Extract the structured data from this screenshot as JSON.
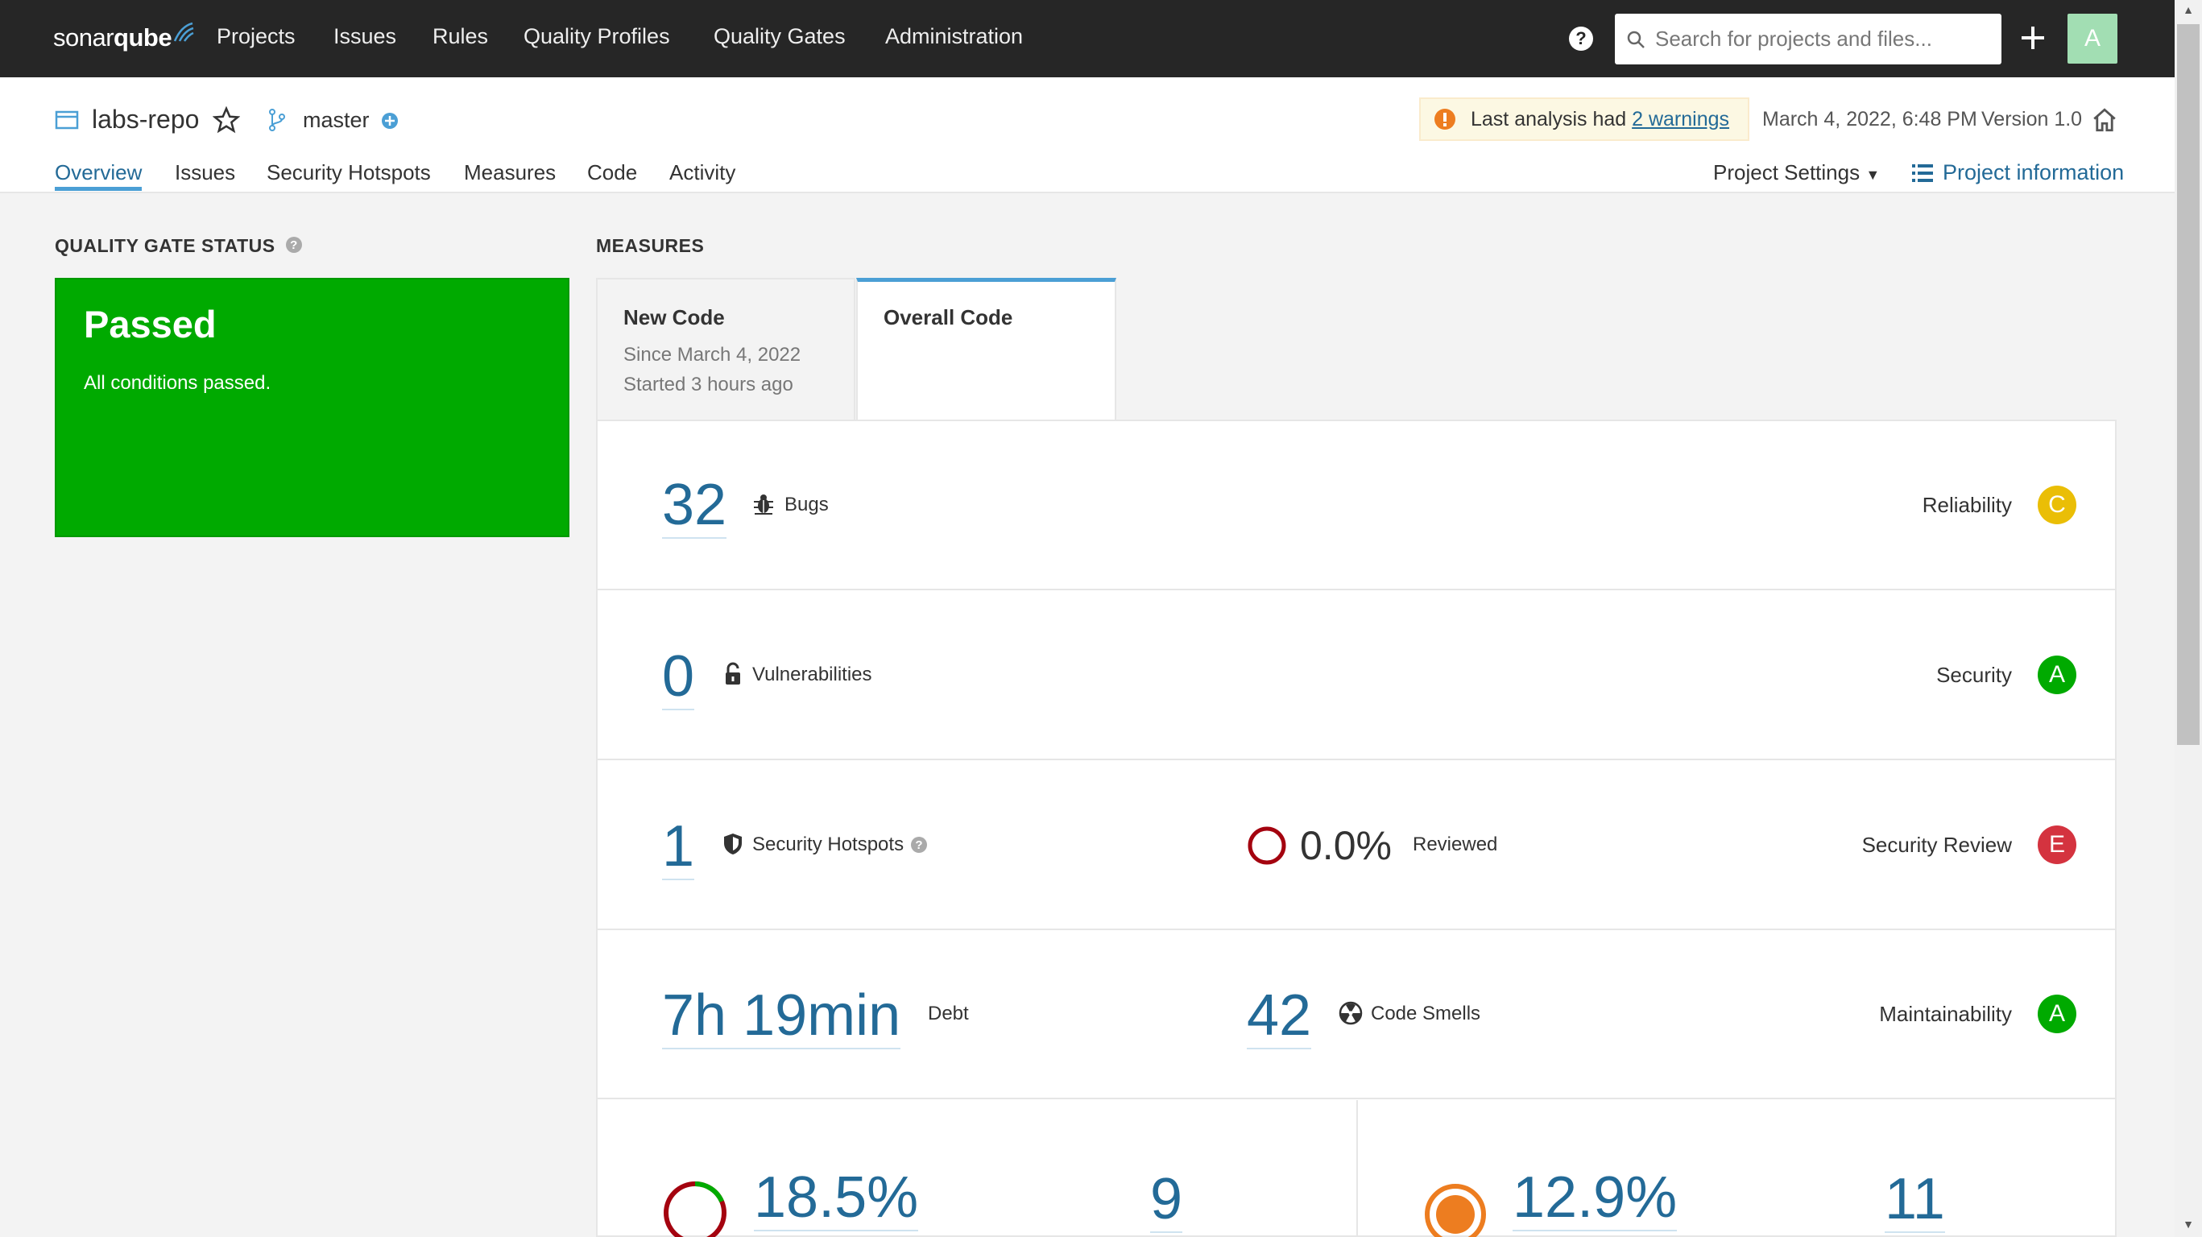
{
  "nav": {
    "logo_text_light": "sonar",
    "logo_text_bold": "qube",
    "items": [
      "Projects",
      "Issues",
      "Rules",
      "Quality Profiles",
      "Quality Gates",
      "Administration"
    ],
    "search_placeholder": "Search for projects and files...",
    "avatar_letter": "A"
  },
  "project": {
    "name": "labs-repo",
    "branch": "master",
    "warning_prefix": "Last analysis had ",
    "warning_link": "2 warnings",
    "analysis_date": "March 4, 2022, 6:48 PM",
    "version": "Version 1.0",
    "tabs": [
      "Overview",
      "Issues",
      "Security Hotspots",
      "Measures",
      "Code",
      "Activity"
    ],
    "settings_label": "Project Settings",
    "info_label": "Project information"
  },
  "quality_gate": {
    "title": "QUALITY GATE STATUS",
    "status": "Passed",
    "description": "All conditions passed."
  },
  "measures": {
    "title": "MEASURES",
    "new_code": {
      "title": "New Code",
      "since": "Since March 4, 2022",
      "started": "Started 3 hours ago"
    },
    "overall_code": {
      "title": "Overall Code"
    },
    "bugs": {
      "value": "32",
      "label": "Bugs",
      "rating_label": "Reliability",
      "rating": "C"
    },
    "vulnerabilities": {
      "value": "0",
      "label": "Vulnerabilities",
      "rating_label": "Security",
      "rating": "A"
    },
    "hotspots": {
      "value": "1",
      "label": "Security Hotspots",
      "reviewed_value": "0.0%",
      "reviewed_label": "Reviewed",
      "rating_label": "Security Review",
      "rating": "E"
    },
    "maintainability": {
      "debt_value": "7h 19min",
      "debt_label": "Debt",
      "smells_value": "42",
      "smells_label": "Code Smells",
      "rating_label": "Maintainability",
      "rating": "A"
    },
    "coverage": {
      "value": "18.5%",
      "count": "9",
      "fraction": 0.185
    },
    "duplications": {
      "value": "12.9%",
      "count": "11"
    },
    "colors": {
      "rating_A": "#00aa00",
      "rating_C": "#eabe06",
      "rating_E": "#d4333f",
      "link": "#236a97",
      "passed": "#00aa00"
    }
  }
}
